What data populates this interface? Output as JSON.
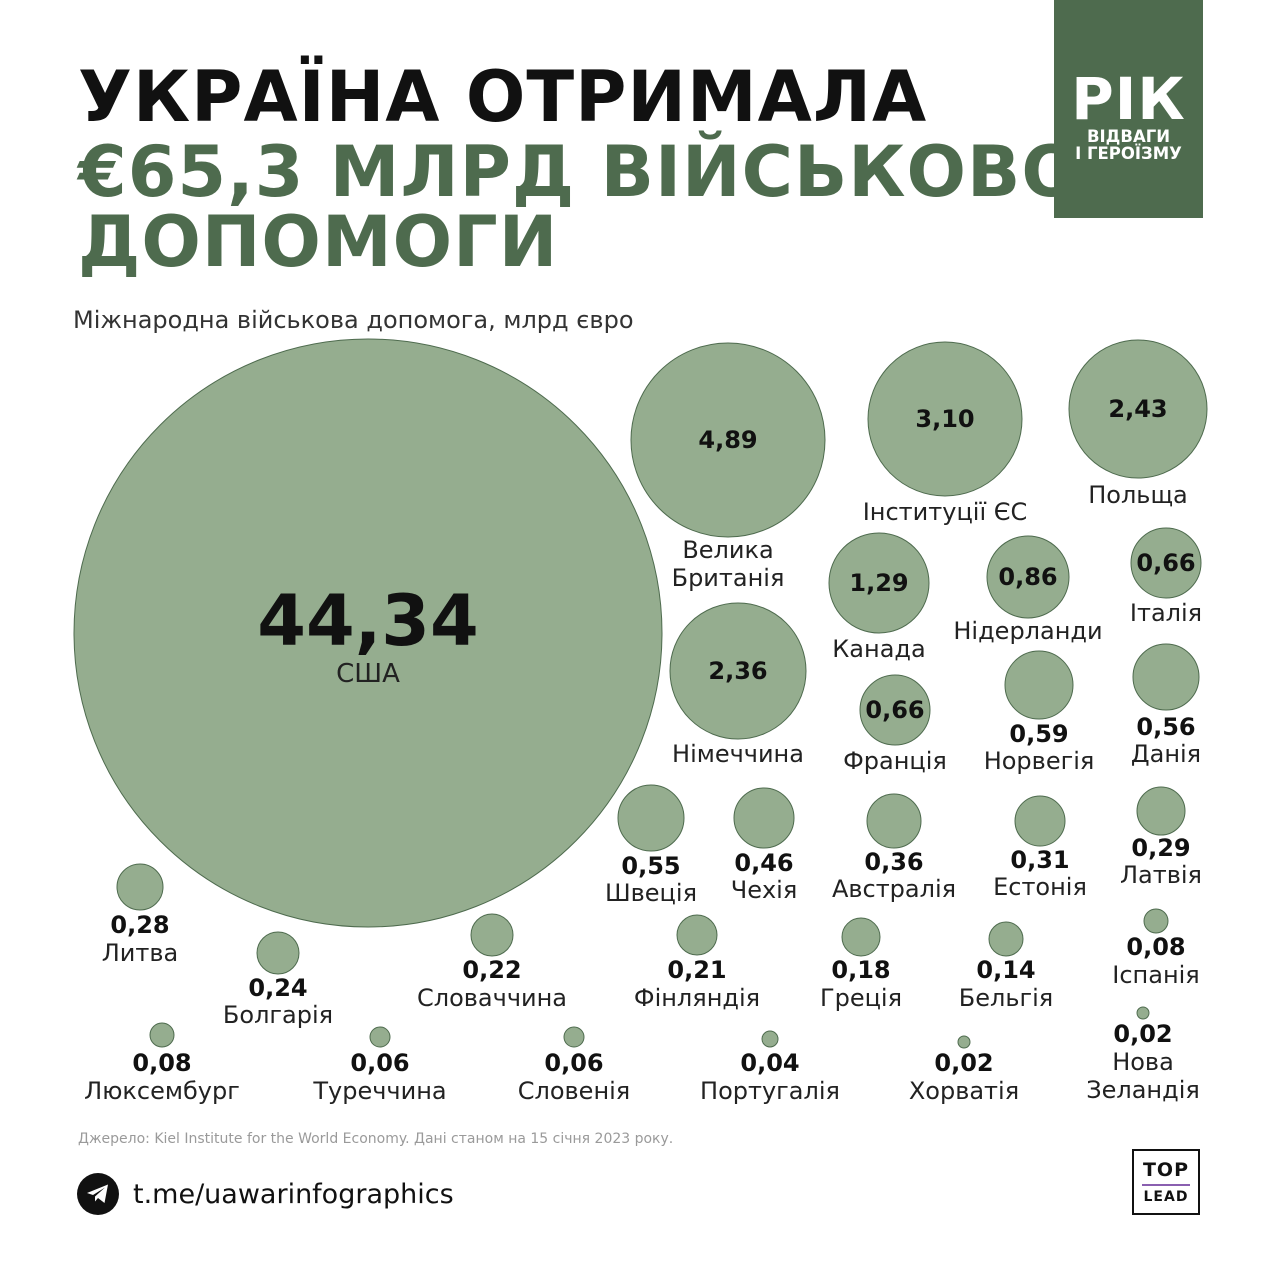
{
  "header": {
    "title_line1": "УКРАЇНА ОТРИМАЛА",
    "title_line2": "€65,3 МЛРД ВІЙСЬКОВОЇ",
    "title_line3": "ДОПОМОГИ"
  },
  "badge": {
    "big": "РІК",
    "line1": "ВІДВАГИ",
    "line2": "І ГЕРОЇЗМУ"
  },
  "subtitle": "Міжнародна військова допомога, млрд євро",
  "footer": {
    "source": "Джерело: Kiel Institute for the World Economy. Дані станом на 15 січня 2023 року.",
    "telegram": "t.me/uawarinfographics",
    "telegram_icon": "telegram-icon",
    "logo_top": "TOP",
    "logo_bottom": "LEAD"
  },
  "colors": {
    "bubble_fill": "#95ad8f",
    "bubble_stroke": "#4e6b4e",
    "accent": "#4e6b4e",
    "logo_rule": "#8a5fb0"
  },
  "chart_data": {
    "type": "bubble",
    "unit": "млрд євро",
    "points": [
      {
        "label": "США",
        "value": 44.34,
        "value_text": "44,34"
      },
      {
        "label": "Велика Британія",
        "value": 4.89,
        "value_text": "4,89"
      },
      {
        "label": "Інституції ЄС",
        "value": 3.1,
        "value_text": "3,10"
      },
      {
        "label": "Польща",
        "value": 2.43,
        "value_text": "2,43"
      },
      {
        "label": "Німеччина",
        "value": 2.36,
        "value_text": "2,36"
      },
      {
        "label": "Канада",
        "value": 1.29,
        "value_text": "1,29"
      },
      {
        "label": "Нідерланди",
        "value": 0.86,
        "value_text": "0,86"
      },
      {
        "label": "Італія",
        "value": 0.66,
        "value_text": "0,66"
      },
      {
        "label": "Франція",
        "value": 0.66,
        "value_text": "0,66"
      },
      {
        "label": "Норвегія",
        "value": 0.59,
        "value_text": "0,59"
      },
      {
        "label": "Данія",
        "value": 0.56,
        "value_text": "0,56"
      },
      {
        "label": "Швеція",
        "value": 0.55,
        "value_text": "0,55"
      },
      {
        "label": "Чехія",
        "value": 0.46,
        "value_text": "0,46"
      },
      {
        "label": "Австралія",
        "value": 0.36,
        "value_text": "0,36"
      },
      {
        "label": "Естонія",
        "value": 0.31,
        "value_text": "0,31"
      },
      {
        "label": "Латвія",
        "value": 0.29,
        "value_text": "0,29"
      },
      {
        "label": "Литва",
        "value": 0.28,
        "value_text": "0,28"
      },
      {
        "label": "Болгарія",
        "value": 0.24,
        "value_text": "0,24"
      },
      {
        "label": "Словаччина",
        "value": 0.22,
        "value_text": "0,22"
      },
      {
        "label": "Фінляндія",
        "value": 0.21,
        "value_text": "0,21"
      },
      {
        "label": "Греція",
        "value": 0.18,
        "value_text": "0,18"
      },
      {
        "label": "Бельгія",
        "value": 0.14,
        "value_text": "0,14"
      },
      {
        "label": "Іспанія",
        "value": 0.08,
        "value_text": "0,08"
      },
      {
        "label": "Люксембург",
        "value": 0.08,
        "value_text": "0,08"
      },
      {
        "label": "Туреччина",
        "value": 0.06,
        "value_text": "0,06"
      },
      {
        "label": "Словенія",
        "value": 0.06,
        "value_text": "0,06"
      },
      {
        "label": "Португалія",
        "value": 0.04,
        "value_text": "0,04"
      },
      {
        "label": "Хорватія",
        "value": 0.02,
        "value_text": "0,02"
      },
      {
        "label": "Нова Зеландія",
        "value": 0.02,
        "value_text": "0,02"
      }
    ]
  }
}
